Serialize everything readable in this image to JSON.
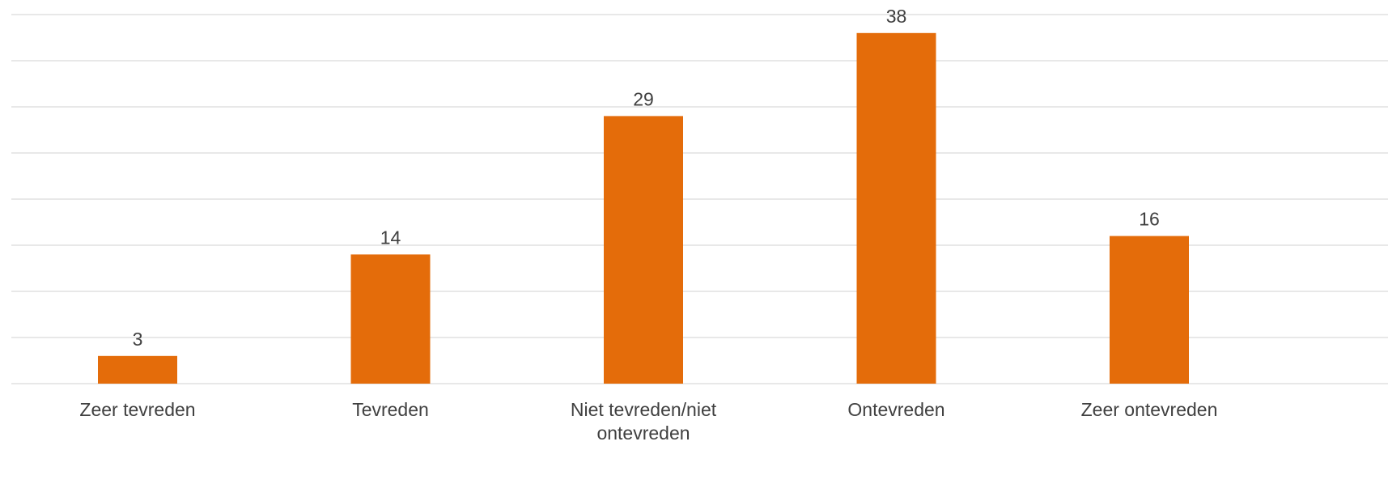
{
  "chart_data": {
    "type": "bar",
    "categories": [
      [
        "Zeer tevreden"
      ],
      [
        "Tevreden"
      ],
      [
        "Niet tevreden/niet",
        "ontevreden"
      ],
      [
        "Ontevreden"
      ],
      [
        "Zeer ontevreden"
      ]
    ],
    "values": [
      3,
      14,
      29,
      38,
      16
    ],
    "ylim": [
      0,
      40
    ],
    "gridlines": 8,
    "grid": true,
    "legend": "none",
    "bar_color": "#e46c0a",
    "data_labels": true
  }
}
